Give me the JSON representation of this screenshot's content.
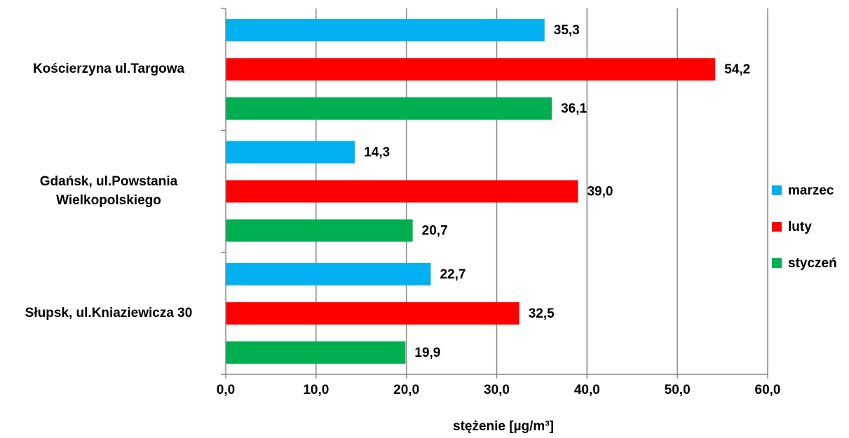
{
  "chart_data": {
    "type": "bar",
    "orientation": "horizontal",
    "title": "",
    "xlabel": "stężenie [µg/m³]",
    "ylabel": "",
    "xlim": [
      0,
      60
    ],
    "x_ticks": [
      0,
      10,
      20,
      30,
      40,
      50,
      60
    ],
    "x_tick_labels": [
      "0,0",
      "10,0",
      "20,0",
      "30,0",
      "40,0",
      "50,0",
      "60,0"
    ],
    "grid": "vertical major gridlines",
    "legend_position": "right",
    "categories": [
      [
        "Kościerzyna ul.Targowa"
      ],
      [
        "Gdańsk, ul.Powstania",
        "Wielkopolskiego"
      ],
      [
        "Słupsk, ul.Kniaziewicza 30"
      ]
    ],
    "series": [
      {
        "name": "marzec",
        "color": "#00B0F0",
        "values": [
          35.3,
          14.3,
          22.7
        ],
        "labels": [
          "35,3",
          "14,3",
          "22,7"
        ]
      },
      {
        "name": "luty",
        "color": "#FF0000",
        "values": [
          54.2,
          39.0,
          32.5
        ],
        "labels": [
          "54,2",
          "39,0",
          "32,5"
        ]
      },
      {
        "name": "styczeń",
        "color": "#00B050",
        "values": [
          36.1,
          20.7,
          19.9
        ],
        "labels": [
          "36,1",
          "20,7",
          "19,9"
        ]
      }
    ]
  }
}
